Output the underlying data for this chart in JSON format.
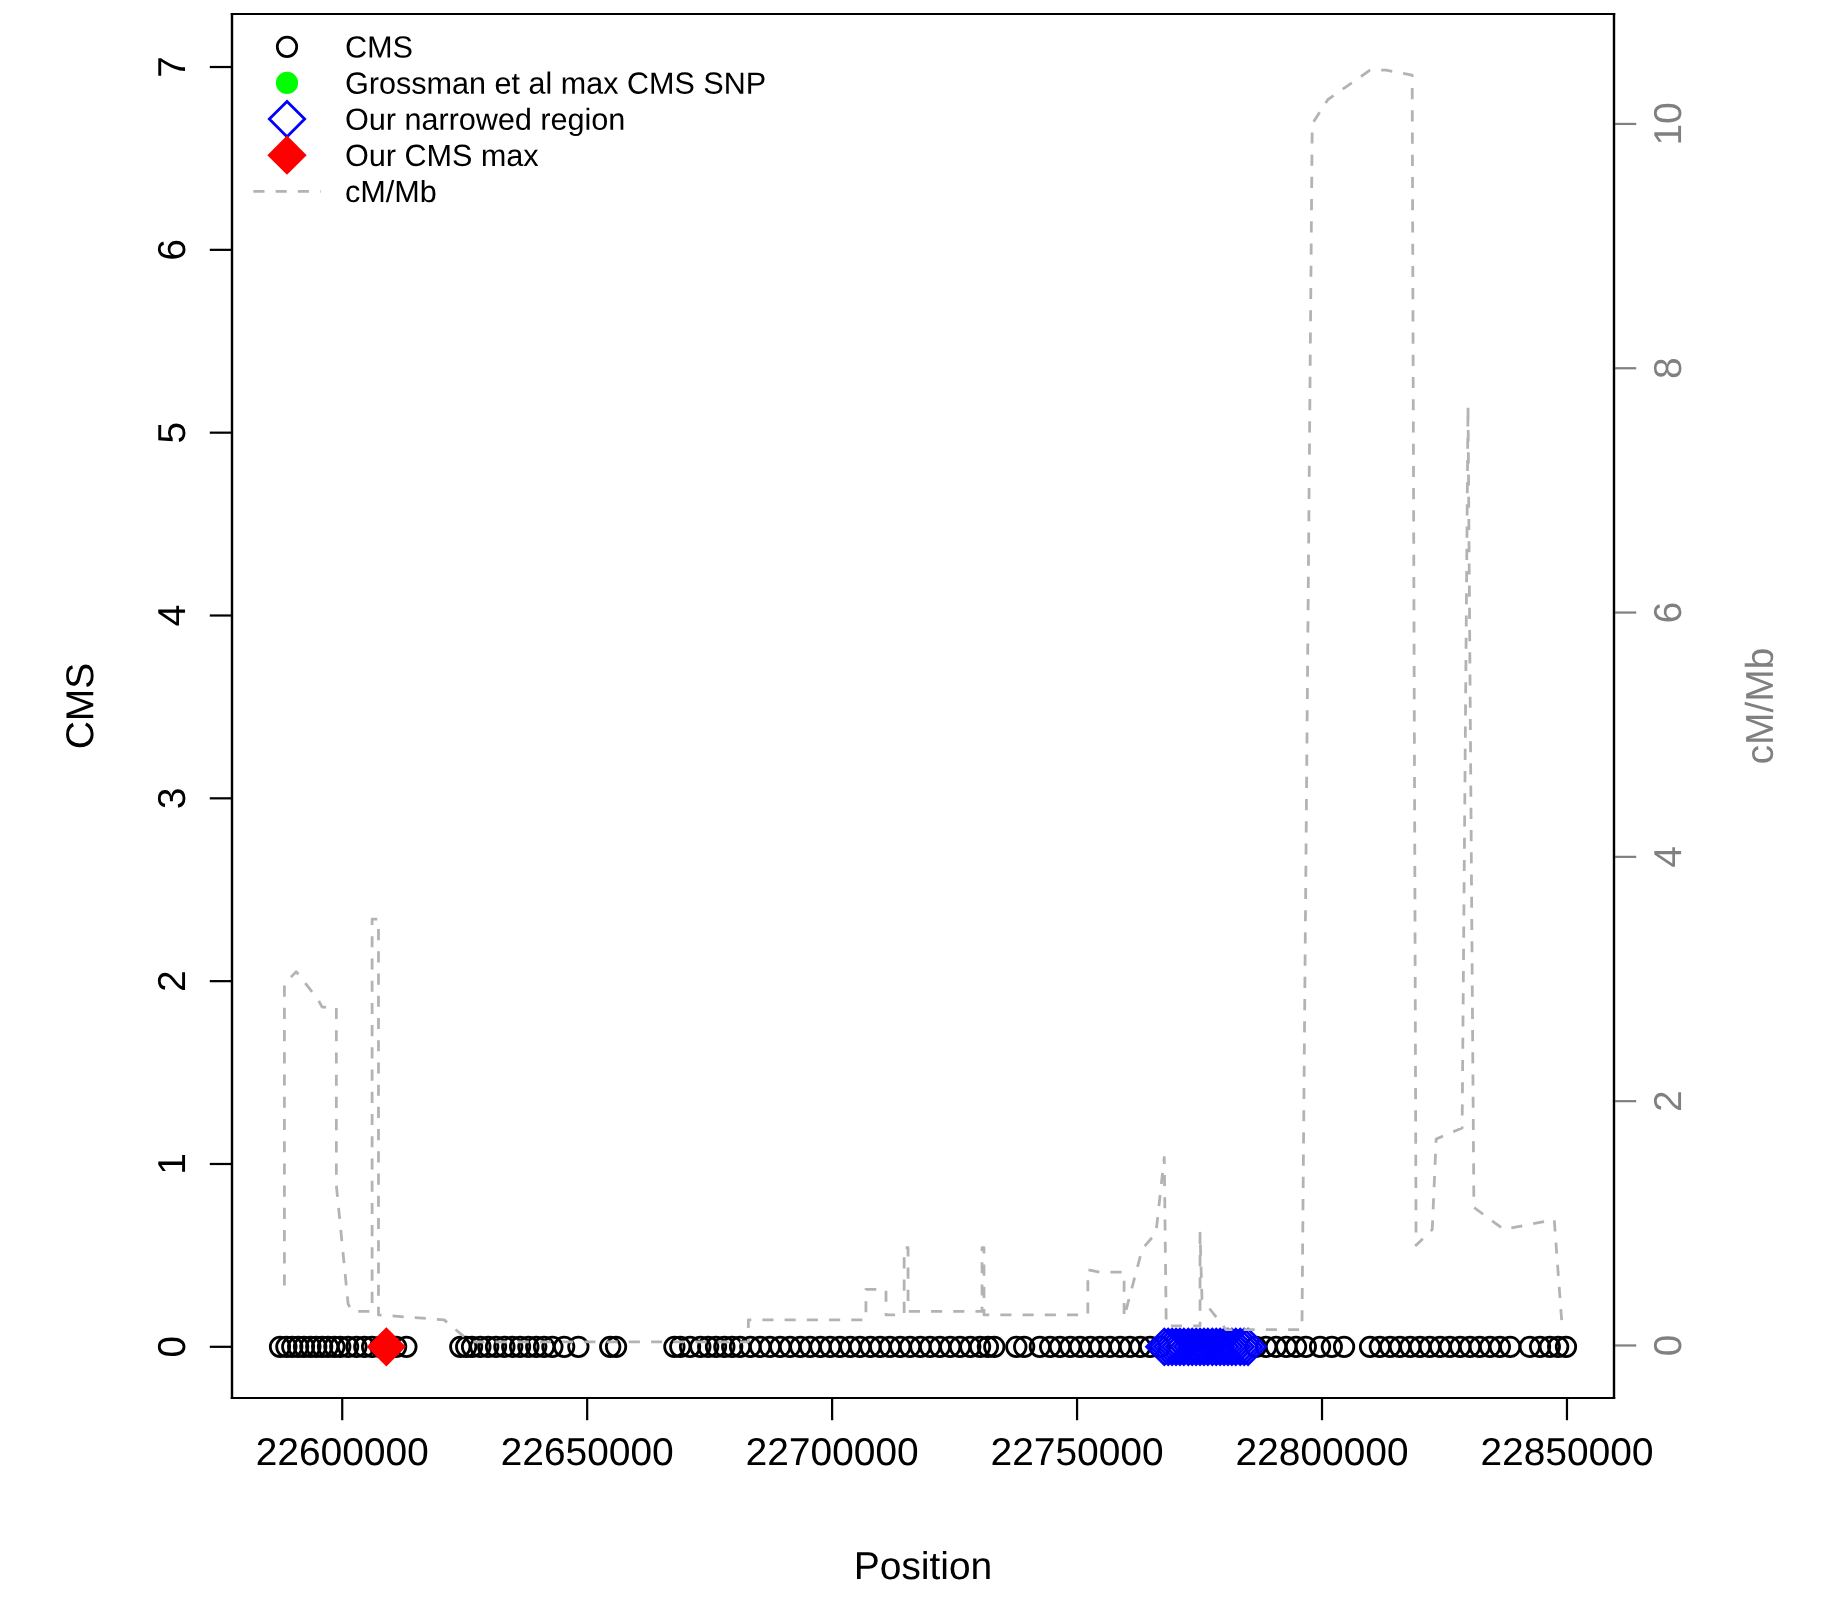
{
  "chart_data": {
    "type": "scatter",
    "xlabel": "Position",
    "ylabel": "CMS",
    "y2label": "cM/Mb",
    "xlim": [
      22577500,
      22859600
    ],
    "xticks": [
      22600000,
      22650000,
      22700000,
      22750000,
      22800000,
      22850000
    ],
    "ylim": [
      -0.28,
      7.29
    ],
    "yticks": [
      0,
      1,
      2,
      3,
      4,
      5,
      6,
      7
    ],
    "y2lim": [
      -0.43,
      10.9
    ],
    "y2ticks": [
      0,
      2,
      4,
      6,
      8,
      10
    ],
    "grid": false,
    "legend": "top left",
    "series": [
      {
        "name": "CMS",
        "marker": "circle",
        "color": "#000000",
        "x": [
          22587300,
          22588600,
          22589800,
          22591000,
          22592200,
          22593500,
          22594700,
          22595900,
          22597100,
          22598400,
          22599600,
          22601200,
          22602900,
          22604500,
          22606100,
          22607800,
          22611000,
          22613100,
          22624100,
          22625300,
          22626500,
          22628200,
          22629800,
          22631400,
          22633100,
          22634700,
          22636300,
          22638000,
          22639600,
          22641200,
          22642900,
          22645300,
          22648200,
          22654700,
          22655900,
          22667800,
          22669000,
          22671000,
          22673100,
          22674700,
          22676300,
          22678000,
          22679600,
          22681200,
          22683300,
          22685300,
          22687300,
          22689400,
          22691400,
          22693500,
          22695500,
          22697600,
          22699600,
          22701600,
          22703700,
          22705700,
          22707800,
          22709800,
          22711800,
          22713900,
          22715900,
          22718000,
          22720000,
          22722000,
          22724100,
          22726100,
          22728200,
          22730200,
          22731800,
          22733100,
          22737600,
          22739200,
          22742400,
          22744500,
          22746500,
          22748600,
          22750600,
          22752700,
          22754700,
          22756700,
          22758800,
          22760800,
          22762900,
          22764900,
          22766900,
          22786500,
          22788600,
          22790600,
          22792700,
          22794700,
          22796700,
          22799600,
          22802000,
          22804500,
          22809800,
          22811800,
          22813900,
          22815900,
          22818000,
          22820000,
          22822000,
          22824100,
          22826100,
          22828200,
          22830200,
          22832200,
          22834300,
          22836300,
          22838400,
          22842400,
          22844500,
          22846500,
          22848200,
          22849800
        ],
        "values": [
          0,
          0,
          0,
          0,
          0,
          0,
          0,
          0,
          0,
          0,
          0,
          0,
          0,
          0,
          0,
          0,
          0,
          0,
          0,
          0,
          0,
          0,
          0,
          0,
          0,
          0,
          0,
          0,
          0,
          0,
          0,
          0,
          0,
          0,
          0,
          0,
          0,
          0,
          0,
          0,
          0,
          0,
          0,
          0,
          0,
          0,
          0,
          0,
          0,
          0,
          0,
          0,
          0,
          0,
          0,
          0,
          0,
          0,
          0,
          0,
          0,
          0,
          0,
          0,
          0,
          0,
          0,
          0,
          0,
          0,
          0,
          0,
          0,
          0,
          0,
          0,
          0,
          0,
          0,
          0,
          0,
          0,
          0,
          0,
          0,
          0,
          0,
          0,
          0,
          0,
          0,
          0,
          0,
          0,
          0,
          0,
          0,
          0,
          0,
          0,
          0,
          0,
          0,
          0,
          0,
          0,
          0,
          0,
          0,
          0,
          0,
          0,
          0,
          0
        ]
      },
      {
        "name": "Grossman et al max CMS SNP",
        "marker": "circle",
        "color": "#00ff00"
      },
      {
        "name": "Our narrowed region",
        "marker": "diamond",
        "color": "#0000ff",
        "x": [
          22767800,
          22768600,
          22769400,
          22770200,
          22771000,
          22771800,
          22772700,
          22773500,
          22774300,
          22775100,
          22775900,
          22776700,
          22777600,
          22778400,
          22779200,
          22780000,
          22780800,
          22781600,
          22782400,
          22783300,
          22784100,
          22784900
        ],
        "values": [
          0,
          0,
          0,
          0,
          0,
          0,
          0,
          0,
          0,
          0,
          0,
          0,
          0,
          0,
          0,
          0,
          0,
          0,
          0,
          0,
          0,
          0
        ]
      },
      {
        "name": "Our CMS max",
        "marker": "diamond",
        "color": "#ff0000",
        "x": [
          22609000
        ],
        "values": [
          0
        ]
      },
      {
        "name": "cM/Mb",
        "type": "line",
        "axis": "y2",
        "line_style": "dashed",
        "marker": "none",
        "color": "#b3b3b3",
        "x": [
          22588200,
          22588200,
          22590600,
          22595100,
          22595900,
          22598800,
          22598800,
          22601200,
          22602000,
          22606100,
          22606100,
          22607400,
          22607400,
          22620800,
          22626100,
          22682900,
          22682900,
          22706900,
          22706900,
          22708600,
          22711000,
          22711000,
          22714700,
          22714700,
          22715500,
          22715500,
          22730600,
          22730600,
          22731000,
          22731000,
          22752200,
          22752200,
          22754700,
          22759600,
          22759600,
          22763300,
          22766100,
          22767800,
          22768200,
          22775100,
          22775100,
          22775500,
          22780400,
          22795900,
          22798000,
          22801200,
          22809800,
          22813100,
          22818400,
          22819200,
          22822500,
          22823300,
          22828600,
          22829800,
          22831000,
          22837100,
          22847400,
          22849000
        ],
        "values": [
          0.49,
          2.96,
          3.06,
          2.83,
          2.77,
          2.77,
          1.31,
          0.34,
          0.28,
          0.28,
          3.49,
          3.49,
          0.25,
          0.21,
          0.03,
          0.03,
          0.21,
          0.21,
          0.46,
          0.46,
          0.46,
          0.25,
          0.25,
          0.8,
          0.8,
          0.28,
          0.28,
          0.8,
          0.8,
          0.25,
          0.25,
          0.62,
          0.6,
          0.6,
          0.23,
          0.79,
          0.92,
          1.54,
          0.16,
          0.16,
          0.92,
          0.38,
          0.13,
          0.13,
          10.0,
          10.2,
          10.44,
          10.44,
          10.4,
          0.82,
          0.95,
          1.69,
          1.78,
          7.69,
          1.13,
          0.95,
          1.03,
          0.16
        ]
      }
    ]
  }
}
